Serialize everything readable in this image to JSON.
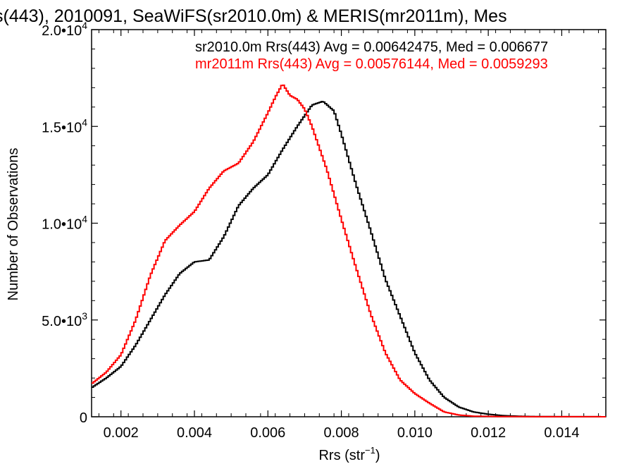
{
  "chart_data": {
    "type": "line",
    "title": "s(443), 2010091, SeaWiFS(sr2010.0m) & MERIS(mr2011m), Mes",
    "xlabel": "Rrs (str",
    "xlabel_sup": "−1",
    "xlabel_tail": ")",
    "ylabel": "Number of Observations",
    "xlim": [
      0.0012,
      0.0152
    ],
    "ylim": [
      0,
      20000
    ],
    "x_ticks": [
      0.002,
      0.004,
      0.006,
      0.008,
      0.01,
      0.012,
      0.014
    ],
    "x_tick_labels": [
      "0.002",
      "0.004",
      "0.006",
      "0.008",
      "0.010",
      "0.012",
      "0.014"
    ],
    "y_ticks": [
      0,
      5000,
      10000,
      15000,
      20000
    ],
    "y_tick_labels": [
      {
        "base": "0",
        "exp": ""
      },
      {
        "base": "5.0•10",
        "exp": "3"
      },
      {
        "base": "1.0•10",
        "exp": "4"
      },
      {
        "base": "1.5•10",
        "exp": "4"
      },
      {
        "base": "2.0•10",
        "exp": "4"
      }
    ],
    "grid": false,
    "series": [
      {
        "name": "sr2010.0m",
        "color": "#000000",
        "stats_text": "sr2010.0m Rrs(443) Avg = 0.00642475, Med = 0.006677",
        "points": [
          [
            0.0012,
            1500
          ],
          [
            0.0016,
            2000
          ],
          [
            0.002,
            2600
          ],
          [
            0.0024,
            3700
          ],
          [
            0.0028,
            5000
          ],
          [
            0.0032,
            6300
          ],
          [
            0.0036,
            7400
          ],
          [
            0.004,
            8000
          ],
          [
            0.0044,
            8100
          ],
          [
            0.0048,
            9300
          ],
          [
            0.0052,
            10900
          ],
          [
            0.0056,
            11800
          ],
          [
            0.006,
            12500
          ],
          [
            0.0064,
            13800
          ],
          [
            0.0068,
            15000
          ],
          [
            0.0072,
            16100
          ],
          [
            0.0075,
            16300
          ],
          [
            0.0078,
            15800
          ],
          [
            0.008,
            14600
          ],
          [
            0.0084,
            12000
          ],
          [
            0.0088,
            9600
          ],
          [
            0.0092,
            7100
          ],
          [
            0.0096,
            5200
          ],
          [
            0.01,
            3300
          ],
          [
            0.0104,
            1900
          ],
          [
            0.0108,
            1000
          ],
          [
            0.0112,
            500
          ],
          [
            0.0116,
            250
          ],
          [
            0.012,
            130
          ],
          [
            0.0124,
            60
          ],
          [
            0.0128,
            30
          ],
          [
            0.0132,
            12
          ],
          [
            0.014,
            5
          ],
          [
            0.0152,
            2
          ]
        ]
      },
      {
        "name": "mr2011m",
        "color": "#ff0000",
        "stats_text": "mr2011m Rrs(443) Avg = 0.00576144, Med = 0.0059293",
        "points": [
          [
            0.0012,
            1700
          ],
          [
            0.0016,
            2300
          ],
          [
            0.002,
            3200
          ],
          [
            0.0024,
            5000
          ],
          [
            0.0028,
            7300
          ],
          [
            0.0032,
            9100
          ],
          [
            0.0036,
            9900
          ],
          [
            0.004,
            10600
          ],
          [
            0.0044,
            11800
          ],
          [
            0.0048,
            12700
          ],
          [
            0.0052,
            13100
          ],
          [
            0.0056,
            14200
          ],
          [
            0.006,
            15700
          ],
          [
            0.0062,
            16500
          ],
          [
            0.0064,
            17200
          ],
          [
            0.0066,
            16600
          ],
          [
            0.0068,
            16400
          ],
          [
            0.007,
            15900
          ],
          [
            0.0072,
            15000
          ],
          [
            0.0076,
            12800
          ],
          [
            0.008,
            10200
          ],
          [
            0.0084,
            7700
          ],
          [
            0.0088,
            5300
          ],
          [
            0.0092,
            3300
          ],
          [
            0.0096,
            1900
          ],
          [
            0.01,
            1200
          ],
          [
            0.0104,
            700
          ],
          [
            0.0108,
            250
          ],
          [
            0.0112,
            90
          ],
          [
            0.0116,
            30
          ],
          [
            0.0124,
            8
          ],
          [
            0.0152,
            2
          ]
        ]
      }
    ]
  }
}
